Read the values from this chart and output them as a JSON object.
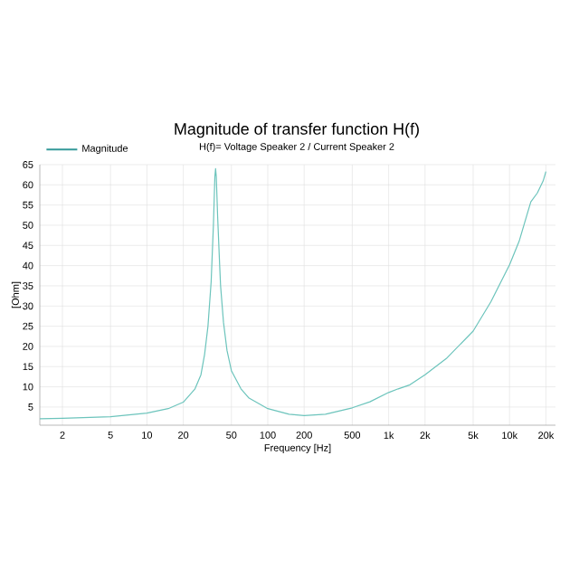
{
  "chart_data": {
    "type": "line",
    "title": "Magnitude of transfer function H(f)",
    "subtitle": "H(f)= Voltage Speaker 2 / Current Speaker 2",
    "xlabel": "Frequency [Hz]",
    "ylabel": "[Ohm]",
    "log": "x",
    "grid": true,
    "legend": "top left",
    "marker": "none",
    "line_style": "solid",
    "xlim": [
      1.3,
      24000
    ],
    "ylim": [
      0.5,
      65
    ],
    "xticks": [
      2,
      5,
      10,
      20,
      50,
      100,
      200,
      500,
      {
        "value": 1000,
        "label": "1k"
      },
      {
        "value": 2000,
        "label": "2k"
      },
      {
        "value": 5000,
        "label": "5k"
      },
      {
        "value": 10000,
        "label": "10k"
      },
      {
        "value": 20000,
        "label": "20k"
      }
    ],
    "yticks": [
      5,
      10,
      15,
      20,
      25,
      30,
      35,
      40,
      45,
      50,
      55,
      60,
      65
    ],
    "series": [
      {
        "name": "Magnitude",
        "color": "#6cc4bc",
        "x": [
          1.3,
          2,
          5,
          10,
          15,
          20,
          25,
          28,
          30,
          32,
          34,
          35.5,
          36.5,
          37,
          37.5,
          38.5,
          40,
          40.7,
          43,
          46,
          50,
          60,
          70,
          100,
          150,
          200,
          300,
          500,
          700,
          1000,
          1200,
          1500,
          2000,
          3000,
          5000,
          7000,
          10000,
          12000,
          15000,
          17000,
          19000,
          20000
        ],
        "values": [
          2.1,
          2.2,
          2.6,
          3.5,
          4.6,
          6.2,
          9.5,
          13,
          18,
          25,
          36,
          50,
          62,
          64,
          62,
          52,
          40,
          35,
          26,
          19,
          14,
          9.5,
          7.2,
          4.6,
          3.2,
          2.9,
          3.2,
          4.8,
          6.3,
          8.6,
          9.5,
          10.5,
          13,
          17,
          23.8,
          31,
          40.2,
          46,
          55.8,
          58,
          61,
          63.3
        ]
      }
    ]
  }
}
